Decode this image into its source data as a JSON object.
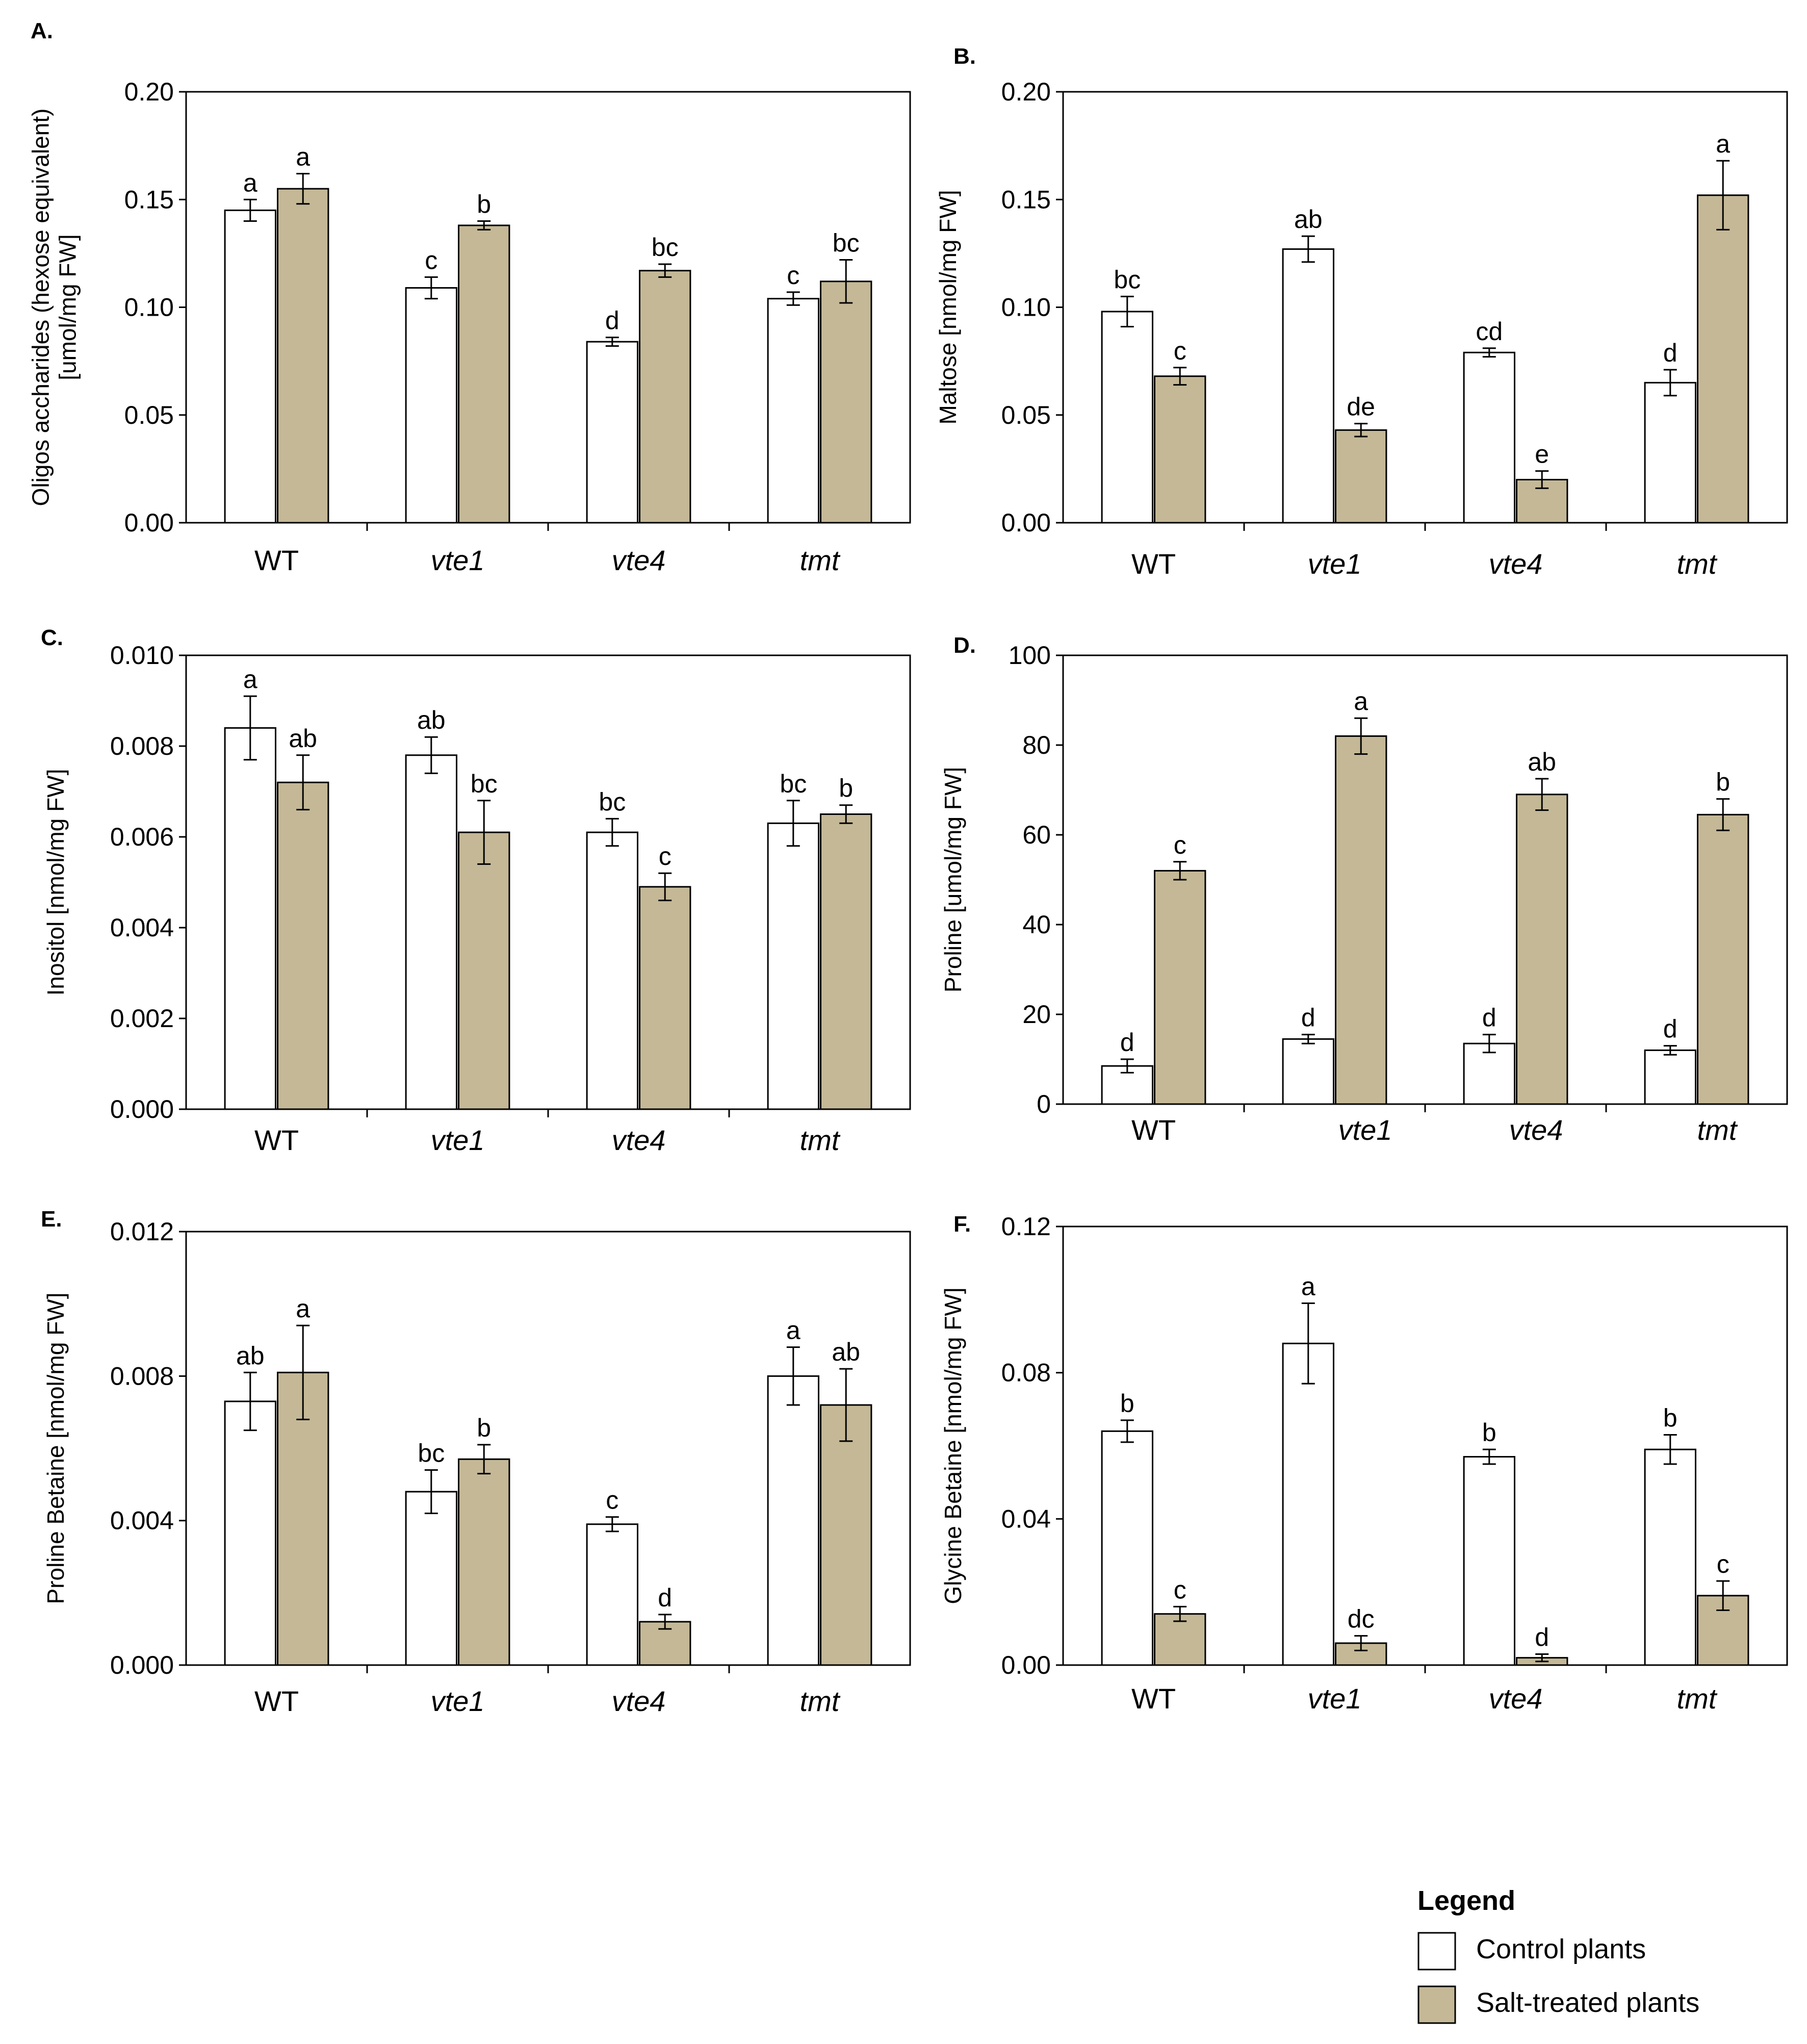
{
  "colors": {
    "control": "#ffffff",
    "salt": "#c4b896",
    "stroke": "#000000"
  },
  "legend": {
    "title": "Legend",
    "items": [
      {
        "label": "Control plants",
        "color": "#ffffff"
      },
      {
        "label": "Salt-treated plants",
        "color": "#c4b896"
      }
    ]
  },
  "chart_data": [
    {
      "type": "bar",
      "panel": "A.",
      "ylabel": [
        "Oligos accharides  (hexose equivalent)",
        "[umol/mg FW]"
      ],
      "categories": [
        "WT",
        "vte1",
        "vte4",
        "tmt"
      ],
      "category_italic": [
        false,
        true,
        true,
        true
      ],
      "ylim": [
        0,
        0.2
      ],
      "yticks": [
        "0.00",
        "0.05",
        "0.10",
        "0.15",
        "0.20"
      ],
      "series": [
        {
          "name": "Control plants",
          "values": [
            0.145,
            0.109,
            0.084,
            0.104
          ],
          "errors": [
            0.005,
            0.005,
            0.002,
            0.003
          ],
          "letters": [
            "a",
            "c",
            "d",
            "c"
          ]
        },
        {
          "name": "Salt-treated plants",
          "values": [
            0.155,
            0.138,
            0.117,
            0.112
          ],
          "errors": [
            0.007,
            0.002,
            0.003,
            0.01
          ],
          "letters": [
            "a",
            "b",
            "bc",
            "bc"
          ]
        }
      ]
    },
    {
      "type": "bar",
      "panel": "B.",
      "ylabel": [
        "Maltose [nmol/mg FW]"
      ],
      "categories": [
        "WT",
        "vte1",
        "vte4",
        "tmt"
      ],
      "category_italic": [
        false,
        true,
        true,
        true
      ],
      "ylim": [
        0,
        0.2
      ],
      "yticks": [
        "0.00",
        "0.05",
        "0.10",
        "0.15",
        "0.20"
      ],
      "series": [
        {
          "name": "Control plants",
          "values": [
            0.098,
            0.127,
            0.079,
            0.065
          ],
          "errors": [
            0.007,
            0.006,
            0.002,
            0.006
          ],
          "letters": [
            "bc",
            "ab",
            "cd",
            "d"
          ]
        },
        {
          "name": "Salt-treated plants",
          "values": [
            0.068,
            0.043,
            0.02,
            0.152
          ],
          "errors": [
            0.004,
            0.003,
            0.004,
            0.016
          ],
          "letters": [
            "c",
            "de",
            "e",
            "a"
          ]
        }
      ]
    },
    {
      "type": "bar",
      "panel": "C.",
      "ylabel": [
        "Inositol [nmol/mg FW]"
      ],
      "categories": [
        "WT",
        "vte1",
        "vte4",
        "tmt"
      ],
      "category_italic": [
        false,
        true,
        true,
        true
      ],
      "ylim": [
        0,
        0.01
      ],
      "yticks": [
        "0.000",
        "0.002",
        "0.004",
        "0.006",
        "0.008",
        "0.010"
      ],
      "series": [
        {
          "name": "Control plants",
          "values": [
            0.0084,
            0.0078,
            0.0061,
            0.0063
          ],
          "errors": [
            0.0007,
            0.0004,
            0.0003,
            0.0005
          ],
          "letters": [
            "a",
            "ab",
            "bc",
            "bc"
          ]
        },
        {
          "name": "Salt-treated plants",
          "values": [
            0.0072,
            0.0061,
            0.0049,
            0.0065
          ],
          "errors": [
            0.0006,
            0.0007,
            0.0003,
            0.0002
          ],
          "letters": [
            "ab",
            "bc",
            "c",
            "b"
          ]
        }
      ]
    },
    {
      "type": "bar",
      "panel": "D.",
      "ylabel": [
        "Proline [umol/mg FW]"
      ],
      "categories": [
        "WT",
        "vte1",
        "vte4",
        "tmt"
      ],
      "category_italic": [
        false,
        true,
        true,
        true
      ],
      "ylim": [
        0,
        100
      ],
      "yticks": [
        "0",
        "20",
        "40",
        "60",
        "80",
        "100"
      ],
      "series": [
        {
          "name": "Control plants",
          "values": [
            8.5,
            14.5,
            13.5,
            12
          ],
          "errors": [
            1.5,
            1,
            2,
            1
          ],
          "letters": [
            "d",
            "d",
            "d",
            "d"
          ]
        },
        {
          "name": "Salt-treated plants",
          "values": [
            52,
            82,
            69,
            64.5
          ],
          "errors": [
            2,
            4,
            3.5,
            3.5
          ],
          "letters": [
            "c",
            "a",
            "ab",
            "b"
          ]
        }
      ]
    },
    {
      "type": "bar",
      "panel": "E.",
      "ylabel": [
        "Proline Betaine [nmol/mg FW]"
      ],
      "categories": [
        "WT",
        "vte1",
        "vte4",
        "tmt"
      ],
      "category_italic": [
        false,
        true,
        true,
        true
      ],
      "ylim": [
        0,
        0.012
      ],
      "yticks": [
        "0.000",
        "0.004",
        "0.008",
        "0.012"
      ],
      "series": [
        {
          "name": "Control plants",
          "values": [
            0.0073,
            0.0048,
            0.0039,
            0.008
          ],
          "errors": [
            0.0008,
            0.0006,
            0.0002,
            0.0008
          ],
          "letters": [
            "ab",
            "bc",
            "c",
            "a"
          ]
        },
        {
          "name": "Salt-treated plants",
          "values": [
            0.0081,
            0.0057,
            0.0012,
            0.0072
          ],
          "errors": [
            0.0013,
            0.0004,
            0.0002,
            0.001
          ],
          "letters": [
            "a",
            "b",
            "d",
            "ab"
          ]
        }
      ]
    },
    {
      "type": "bar",
      "panel": "F.",
      "ylabel": [
        "Glycine Betaine [nmol/mg FW]"
      ],
      "categories": [
        "WT",
        "vte1",
        "vte4",
        "tmt"
      ],
      "category_italic": [
        false,
        true,
        true,
        true
      ],
      "ylim": [
        0,
        0.12
      ],
      "yticks": [
        "0.00",
        "0.04",
        "0.08",
        "0.12"
      ],
      "series": [
        {
          "name": "Control plants",
          "values": [
            0.064,
            0.088,
            0.057,
            0.059
          ],
          "errors": [
            0.003,
            0.011,
            0.002,
            0.004
          ],
          "letters": [
            "b",
            "a",
            "b",
            "b"
          ]
        },
        {
          "name": "Salt-treated plants",
          "values": [
            0.014,
            0.006,
            0.002,
            0.019
          ],
          "errors": [
            0.002,
            0.002,
            0.001,
            0.004
          ],
          "letters": [
            "c",
            "dc",
            "d",
            "c"
          ]
        }
      ]
    }
  ]
}
